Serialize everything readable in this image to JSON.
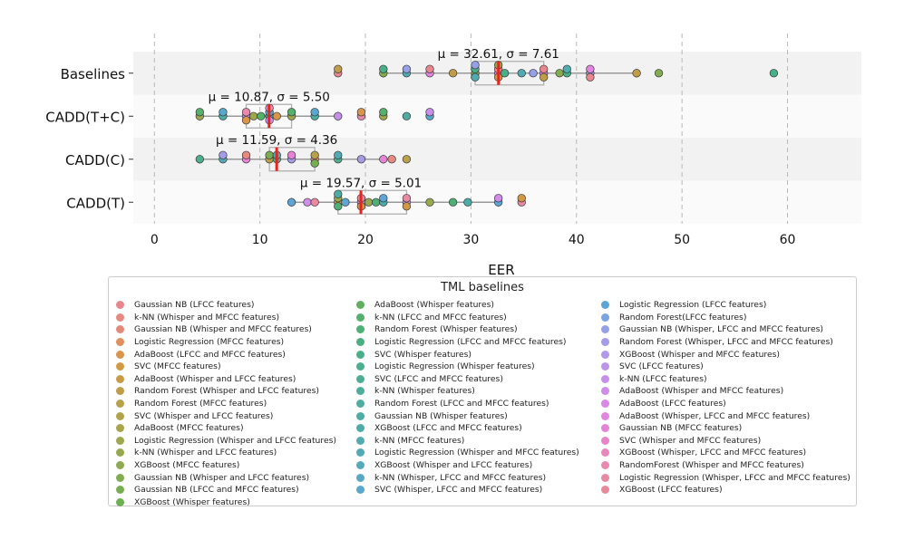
{
  "chart_data": {
    "type": "scatter",
    "xlabel": "EER",
    "xlim": [
      -2,
      67
    ],
    "xticks": [
      0,
      10,
      20,
      30,
      40,
      50,
      60
    ],
    "grid": "vertical dashed",
    "categories": [
      "Baselines",
      "CADD(T+C)",
      "CADD(C)",
      "CADD(T)"
    ],
    "rows": [
      {
        "label": "Baselines",
        "annotation": "μ = 32.61, σ = 7.61",
        "mean": 32.61,
        "box": [
          30.4,
          36.9
        ],
        "whiskers": [
          21.7,
          45.7
        ],
        "points": [
          17.4,
          17.4,
          21.7,
          21.7,
          23.9,
          23.9,
          26.1,
          26.1,
          28.3,
          30.4,
          30.4,
          30.4,
          30.4,
          32.6,
          32.6,
          32.6,
          32.6,
          33.2,
          34.8,
          35.9,
          36.9,
          36.9,
          36.9,
          38.4,
          39.1,
          39.1,
          41.3,
          41.3,
          41.3,
          45.7,
          47.8,
          58.7
        ]
      },
      {
        "label": "CADD(T+C)",
        "annotation": "μ = 10.87, σ = 5.50",
        "mean": 10.87,
        "box": [
          8.7,
          13.0
        ],
        "whiskers": [
          4.3,
          17.4
        ],
        "points": [
          4.3,
          4.3,
          6.5,
          6.5,
          8.7,
          8.7,
          8.7,
          9.4,
          10.1,
          10.9,
          10.9,
          10.9,
          10.9,
          11.6,
          13.0,
          13.0,
          15.2,
          15.2,
          17.4,
          19.6,
          19.6,
          21.7,
          21.7,
          23.9,
          26.1,
          26.1
        ]
      },
      {
        "label": "CADD(C)",
        "annotation": "μ = 11.59, σ = 4.36",
        "mean": 11.59,
        "box": [
          10.9,
          15.2
        ],
        "whiskers": [
          4.3,
          21.7
        ],
        "points": [
          4.3,
          6.5,
          6.5,
          8.7,
          8.7,
          10.9,
          10.9,
          11.6,
          11.6,
          13.0,
          13.0,
          15.2,
          15.2,
          15.2,
          17.4,
          17.4,
          19.6,
          21.7,
          22.5,
          23.9
        ]
      },
      {
        "label": "CADD(T)",
        "annotation": "μ = 19.57, σ = 5.01",
        "mean": 19.57,
        "box": [
          17.4,
          23.9
        ],
        "whiskers": [
          13.0,
          32.6
        ],
        "points": [
          13.0,
          14.5,
          15.2,
          17.4,
          17.4,
          17.4,
          17.4,
          18.1,
          19.6,
          19.6,
          19.6,
          20.3,
          21.0,
          21.7,
          21.7,
          23.9,
          23.9,
          23.9,
          26.1,
          28.3,
          29.7,
          32.6,
          32.6,
          34.8,
          34.8
        ]
      }
    ],
    "legend": {
      "title": "TML baselines",
      "placement": "bottom-center",
      "entries": [
        {
          "label": "Gaussian NB (LFCC features)",
          "color": "#e8868f"
        },
        {
          "label": "k-NN (Whisper and MFCC features)",
          "color": "#e68a80"
        },
        {
          "label": "Gaussian NB (Whisper and MFCC features)",
          "color": "#e58a78"
        },
        {
          "label": "Logistic Regression (MFCC features)",
          "color": "#e0905f"
        },
        {
          "label": "AdaBoost (LFCC and MFCC features)",
          "color": "#d9954c"
        },
        {
          "label": "SVC (MFCC features)",
          "color": "#d29843"
        },
        {
          "label": "AdaBoost (Whisper and LFCC features)",
          "color": "#c99b47"
        },
        {
          "label": "Random Forest (Whisper and LFCC features)",
          "color": "#c19d49"
        },
        {
          "label": "Random Forest (MFCC features)",
          "color": "#b9a04b"
        },
        {
          "label": "SVC (Whisper and LFCC features)",
          "color": "#b0a34c"
        },
        {
          "label": "AdaBoost (MFCC features)",
          "color": "#a8a54d"
        },
        {
          "label": "Logistic Regression (Whisper and LFCC features)",
          "color": "#9fa74e"
        },
        {
          "label": "k-NN (Whisper and LFCC features)",
          "color": "#96a94f"
        },
        {
          "label": "XGBoost (MFCC features)",
          "color": "#8daa50"
        },
        {
          "label": "Gaussian NB (Whisper and LFCC features)",
          "color": "#83ac51"
        },
        {
          "label": "Gaussian NB (LFCC and MFCC features)",
          "color": "#78ae52"
        },
        {
          "label": "XGBoost (Whisper features)",
          "color": "#6daf55"
        },
        {
          "label": "AdaBoost (Whisper features)",
          "color": "#5fb05e"
        },
        {
          "label": "k-NN (LFCC and MFCC features)",
          "color": "#54b06b"
        },
        {
          "label": "Random Forest (Whisper features)",
          "color": "#4eb076"
        },
        {
          "label": "Logistic Regression (LFCC and MFCC features)",
          "color": "#4bb080"
        },
        {
          "label": "SVC (Whisper features)",
          "color": "#4aaf88"
        },
        {
          "label": "Logistic Regression (Whisper features)",
          "color": "#4aae8f"
        },
        {
          "label": "SVC (LFCC and MFCC features)",
          "color": "#4bae95"
        },
        {
          "label": "k-NN (Whisper features)",
          "color": "#4cad9b"
        },
        {
          "label": "Random Forest (LFCC and MFCC features)",
          "color": "#4dada1"
        },
        {
          "label": "Gaussian NB (Whisper features)",
          "color": "#4eacA6"
        },
        {
          "label": "XGBoost (LFCC and MFCC features)",
          "color": "#4fabab"
        },
        {
          "label": "k-NN (MFCC features)",
          "color": "#51abb1"
        },
        {
          "label": "Logistic Regression (Whisper and MFCC features)",
          "color": "#52aab7"
        },
        {
          "label": "XGBoost (Whisper and LFCC features)",
          "color": "#54a9bd"
        },
        {
          "label": "k-NN (Whisper, LFCC and MFCC features)",
          "color": "#56a8c4"
        },
        {
          "label": "SVC (Whisper, LFCC and MFCC features)",
          "color": "#59a7cc"
        },
        {
          "label": "Logistic Regression (LFCC features)",
          "color": "#5ca5d4"
        },
        {
          "label": "Random Forest(LFCC features)",
          "color": "#7ba4e0"
        },
        {
          "label": "Gaussian NB (Whisper, LFCC and MFCC features)",
          "color": "#96a0e6"
        },
        {
          "label": "Random Forest (Whisper, LFCC and MFCC features)",
          "color": "#a59ce8"
        },
        {
          "label": "XGBoost (Whisper and MFCC features)",
          "color": "#b198ea"
        },
        {
          "label": "SVC (LFCC features)",
          "color": "#bc94ea"
        },
        {
          "label": "k-NN (LFCC features)",
          "color": "#c690ea"
        },
        {
          "label": "AdaBoost (Whisper and MFCC features)",
          "color": "#d08ce9"
        },
        {
          "label": "AdaBoost (LFCC features)",
          "color": "#d988e6"
        },
        {
          "label": "AdaBoost (Whisper, LFCC and MFCC features)",
          "color": "#e085e0"
        },
        {
          "label": "Gaussian NB (MFCC features)",
          "color": "#e584d5"
        },
        {
          "label": "SVC (Whisper and MFCC features)",
          "color": "#e885c9"
        },
        {
          "label": "XGBoost (Whisper, LFCC and MFCC features)",
          "color": "#e987bc"
        },
        {
          "label": "RandomForest (Whisper and MFCC features)",
          "color": "#e989af"
        },
        {
          "label": "Logistic Regression (Whisper, LFCC and MFCC features)",
          "color": "#e98aa3"
        },
        {
          "label": "XGBoost (LFCC features)",
          "color": "#e98898"
        }
      ]
    }
  }
}
